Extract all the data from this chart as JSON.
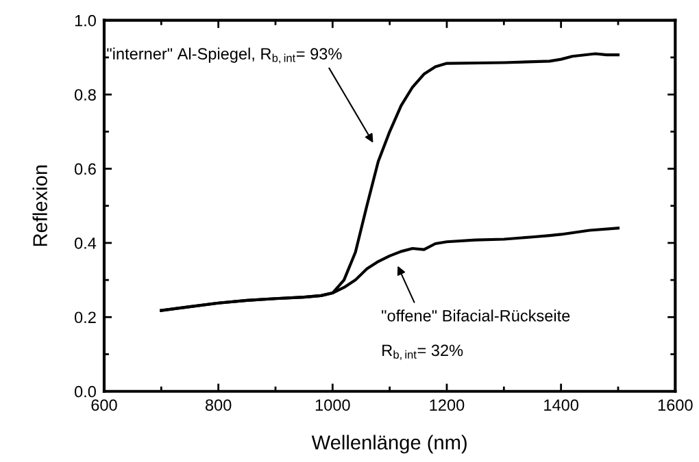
{
  "chart_data": {
    "type": "line",
    "xlabel": "Wellenlänge (nm)",
    "ylabel": "Reflexion",
    "xlim": [
      600,
      1600
    ],
    "xticks": [
      600,
      800,
      1000,
      1200,
      1400,
      1600
    ],
    "ylim": [
      0.0,
      1.0
    ],
    "yticks": [
      {
        "value": 0,
        "label": "0.0"
      },
      0.2,
      0.4,
      0.6,
      0.8,
      {
        "value": 1,
        "label": "1.0"
      }
    ],
    "grid": false,
    "marker": "none",
    "line_style": "solid",
    "series": [
      {
        "color": "#000000",
        "x": [
          700,
          750,
          800,
          850,
          900,
          950,
          980,
          1000,
          1020,
          1040,
          1060,
          1080,
          1100,
          1120,
          1140,
          1160,
          1180,
          1200,
          1300,
          1380,
          1400,
          1420,
          1460,
          1480,
          1500
        ],
        "values": [
          0.218,
          0.228,
          0.238,
          0.245,
          0.25,
          0.254,
          0.258,
          0.265,
          0.3,
          0.375,
          0.5,
          0.62,
          0.7,
          0.77,
          0.82,
          0.855,
          0.875,
          0.884,
          0.886,
          0.89,
          0.895,
          0.903,
          0.91,
          0.907,
          0.907
        ]
      },
      {
        "color": "#000000",
        "x": [
          700,
          750,
          800,
          850,
          900,
          950,
          980,
          1000,
          1020,
          1040,
          1060,
          1080,
          1100,
          1120,
          1140,
          1160,
          1180,
          1200,
          1250,
          1300,
          1350,
          1380,
          1400,
          1450,
          1500
        ],
        "values": [
          0.218,
          0.228,
          0.238,
          0.245,
          0.25,
          0.254,
          0.258,
          0.265,
          0.28,
          0.3,
          0.33,
          0.35,
          0.365,
          0.377,
          0.385,
          0.382,
          0.398,
          0.403,
          0.408,
          0.41,
          0.416,
          0.42,
          0.423,
          0.434,
          0.44
        ]
      }
    ],
    "annotations": [
      "\"interner\" Al-Spiegel, R$_{b,int}$= 93%",
      "\"offene\" Bifacial-Rückseite",
      "R$_{b,int}$= 32%"
    ]
  }
}
